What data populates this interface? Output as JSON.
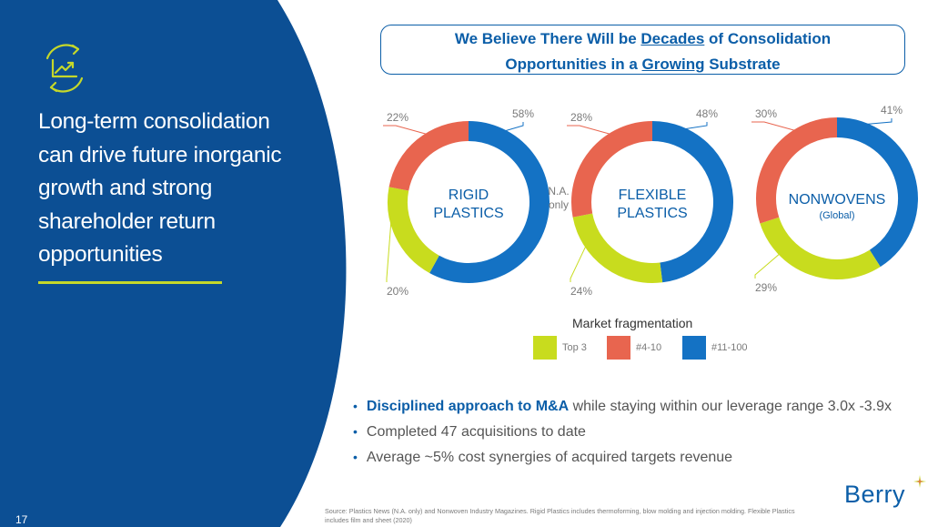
{
  "title_lines": [
    "Long-term consolidation",
    "can drive future inorganic",
    "growth and strong",
    "shareholder return",
    "opportunities"
  ],
  "headline": {
    "line1_before": "We Believe There Will be ",
    "line1_emph": "Decades",
    "line1_after": " of Consolidation",
    "line2_before": "Opportunities in a ",
    "line2_emph": "Growing",
    "line2_after": " Substrate"
  },
  "colors": {
    "navy": "#0c4f94",
    "accent_green": "#c5d82a",
    "top3": "#c8dc1e",
    "rank4_10": "#e8654f",
    "rank11_100": "#1472c4",
    "brand_blue": "#0b5ea8"
  },
  "chart_data": {
    "type": "pie",
    "title": "Market fragmentation",
    "legend": [
      "Top 3",
      "#4-10",
      "#11-100"
    ],
    "charts": [
      {
        "name_lines": [
          "RIGID",
          "PLASTICS"
        ],
        "note_lines": [
          "N.A.",
          "only"
        ],
        "top3": 20,
        "rank4_10": 22,
        "rank11_100": 58,
        "labels": {
          "top3": "20%",
          "rank4_10": "22%",
          "rank11_100": "58%"
        }
      },
      {
        "name_lines": [
          "FLEXIBLE",
          "PLASTICS"
        ],
        "note_lines": [],
        "top3": 24,
        "rank4_10": 28,
        "rank11_100": 48,
        "labels": {
          "top3": "24%",
          "rank4_10": "28%",
          "rank11_100": "48%"
        }
      },
      {
        "name_lines": [
          "NONWOVENS"
        ],
        "sublabel": "(Global)",
        "note_lines": [],
        "top3": 29,
        "rank4_10": 30,
        "rank11_100": 41,
        "labels": {
          "top3": "29%",
          "rank4_10": "30%",
          "rank11_100": "41%"
        }
      }
    ]
  },
  "bullets": [
    {
      "emph": "Disciplined approach to M&A",
      "text": " while staying within our leverage range 3.0x -3.9x"
    },
    {
      "emph": "",
      "text": "Completed 47 acquisitions to date"
    },
    {
      "emph": "",
      "text": "Average ~5% cost synergies of acquired targets revenue"
    }
  ],
  "source_text": "Source: Plastics News (N.A. only) and Nonwoven Industry Magazines. Rigid Plastics includes thermoforming, blow molding and injection molding. Flexible Plastics includes film and sheet (2020)",
  "logo_text": "Berry",
  "page_number": "17",
  "icon_name": "growth-chart-icon"
}
